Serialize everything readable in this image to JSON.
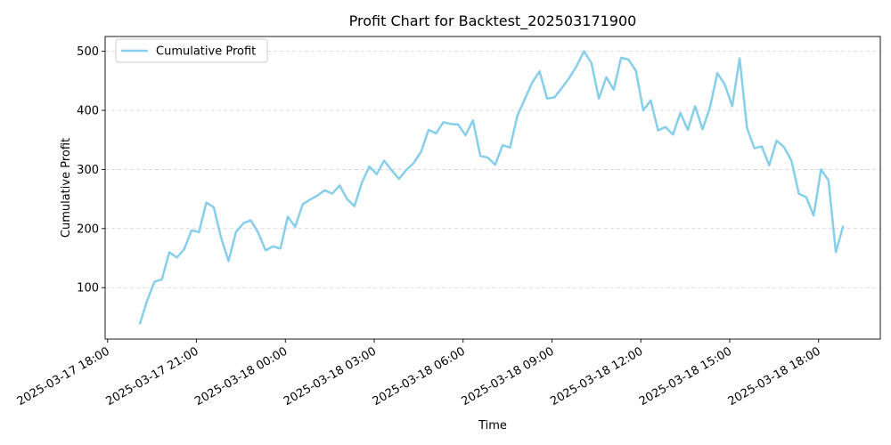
{
  "chart_data": {
    "type": "line",
    "title": "Profit Chart for Backtest_202503171900",
    "xlabel": "Time",
    "ylabel": "Cumulative Profit",
    "grid": "y-dashed",
    "legend_position": "top-left",
    "line_color": "#87CEEB",
    "xlim": [
      "2025-03-17 17:55",
      "2025-03-18 20:05"
    ],
    "ylim": [
      13,
      525
    ],
    "x_ticks": [
      "2025-03-17 18:00",
      "2025-03-17 21:00",
      "2025-03-18 00:00",
      "2025-03-18 03:00",
      "2025-03-18 06:00",
      "2025-03-18 09:00",
      "2025-03-18 12:00",
      "2025-03-18 15:00",
      "2025-03-18 18:00"
    ],
    "y_ticks": [
      100,
      200,
      300,
      400,
      500
    ],
    "series": [
      {
        "name": "Cumulative Profit",
        "x": [
          "2025-03-17 19:05",
          "2025-03-17 19:20",
          "2025-03-17 19:35",
          "2025-03-17 19:50",
          "2025-03-17 20:05",
          "2025-03-17 20:20",
          "2025-03-17 20:35",
          "2025-03-17 20:50",
          "2025-03-17 21:05",
          "2025-03-17 21:20",
          "2025-03-17 21:35",
          "2025-03-17 21:50",
          "2025-03-17 22:05",
          "2025-03-17 22:20",
          "2025-03-17 22:35",
          "2025-03-17 22:50",
          "2025-03-17 23:05",
          "2025-03-17 23:20",
          "2025-03-17 23:35",
          "2025-03-17 23:50",
          "2025-03-18 00:05",
          "2025-03-18 00:20",
          "2025-03-18 00:35",
          "2025-03-18 00:50",
          "2025-03-18 01:05",
          "2025-03-18 01:20",
          "2025-03-18 01:35",
          "2025-03-18 01:50",
          "2025-03-18 02:05",
          "2025-03-18 02:20",
          "2025-03-18 02:35",
          "2025-03-18 02:50",
          "2025-03-18 03:05",
          "2025-03-18 03:20",
          "2025-03-18 03:35",
          "2025-03-18 03:50",
          "2025-03-18 04:05",
          "2025-03-18 04:20",
          "2025-03-18 04:35",
          "2025-03-18 04:50",
          "2025-03-18 05:05",
          "2025-03-18 05:20",
          "2025-03-18 05:35",
          "2025-03-18 05:50",
          "2025-03-18 06:05",
          "2025-03-18 06:20",
          "2025-03-18 06:35",
          "2025-03-18 06:50",
          "2025-03-18 07:05",
          "2025-03-18 07:20",
          "2025-03-18 07:35",
          "2025-03-18 07:50",
          "2025-03-18 08:05",
          "2025-03-18 08:20",
          "2025-03-18 08:35",
          "2025-03-18 08:50",
          "2025-03-18 09:05",
          "2025-03-18 09:20",
          "2025-03-18 09:35",
          "2025-03-18 09:50",
          "2025-03-18 10:05",
          "2025-03-18 10:20",
          "2025-03-18 10:35",
          "2025-03-18 10:50",
          "2025-03-18 11:05",
          "2025-03-18 11:20",
          "2025-03-18 11:35",
          "2025-03-18 11:50",
          "2025-03-18 12:05",
          "2025-03-18 12:20",
          "2025-03-18 12:35",
          "2025-03-18 12:50",
          "2025-03-18 13:05",
          "2025-03-18 13:20",
          "2025-03-18 13:35",
          "2025-03-18 13:50",
          "2025-03-18 14:05",
          "2025-03-18 14:20",
          "2025-03-18 14:35",
          "2025-03-18 14:50",
          "2025-03-18 15:05",
          "2025-03-18 15:20",
          "2025-03-18 15:35",
          "2025-03-18 15:50",
          "2025-03-18 16:05",
          "2025-03-18 16:20",
          "2025-03-18 16:35",
          "2025-03-18 16:50",
          "2025-03-18 17:05",
          "2025-03-18 17:20",
          "2025-03-18 17:35",
          "2025-03-18 17:50",
          "2025-03-18 18:05",
          "2025-03-18 18:20",
          "2025-03-18 18:35",
          "2025-03-18 18:50"
        ],
        "values": [
          38,
          78,
          110,
          114,
          160,
          151,
          165,
          197,
          194,
          244,
          236,
          184,
          145,
          194,
          209,
          214,
          193,
          163,
          170,
          166,
          220,
          203,
          241,
          249,
          256,
          265,
          259,
          273,
          250,
          238,
          278,
          305,
          292,
          315,
          299,
          284,
          299,
          311,
          330,
          367,
          361,
          380,
          377,
          376,
          358,
          383,
          323,
          320,
          308,
          341,
          337,
          391,
          419,
          447,
          466,
          420,
          422,
          438,
          455,
          475,
          500,
          480,
          420,
          456,
          435,
          489,
          486,
          467,
          400,
          417,
          366,
          372,
          359,
          396,
          367,
          407,
          368,
          405,
          463,
          444,
          407,
          488,
          370,
          336,
          339,
          307,
          349,
          338,
          315,
          259,
          253,
          222,
          300,
          282,
          160,
          205
        ]
      }
    ]
  }
}
